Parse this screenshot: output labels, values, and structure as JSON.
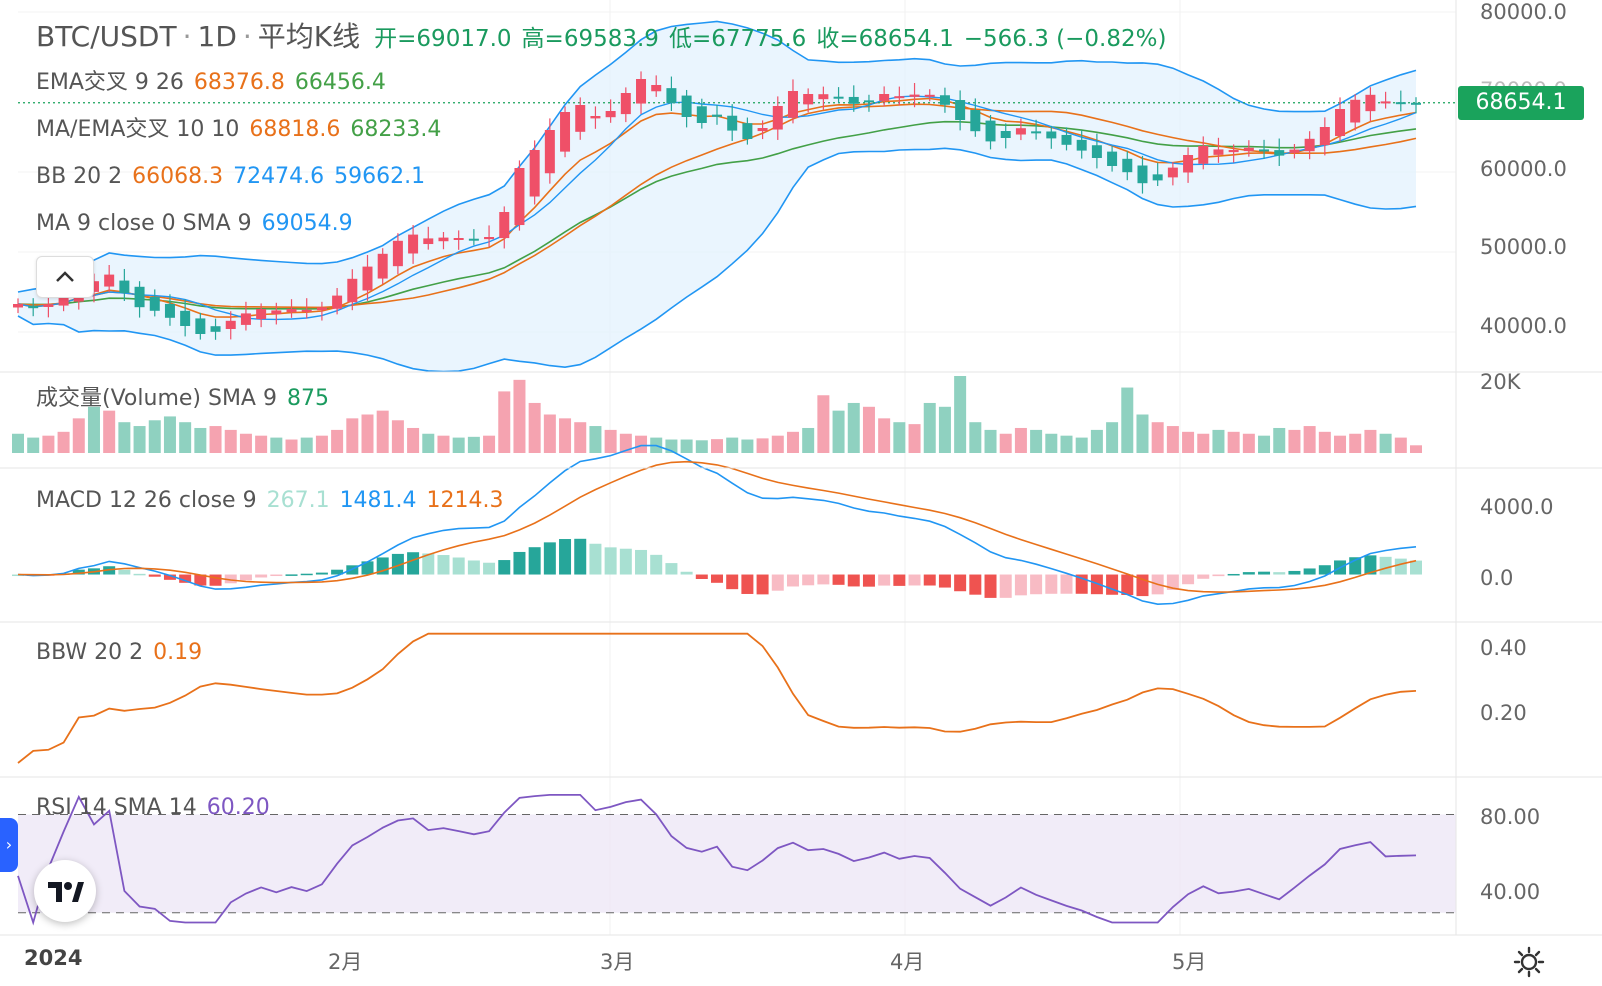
{
  "header": {
    "symbol": "BTC/USDT",
    "sep": "·",
    "interval": "1D",
    "sep2": "·",
    "chart_type": "平均K线",
    "open": "开=69017.0",
    "high": "高=69583.9",
    "low": "低=67775.6",
    "close": "收=68654.1",
    "change": "−566.3 (−0.82%)"
  },
  "indicators": {
    "ema": {
      "name": "EMA交叉 9 26",
      "v1": "68376.8",
      "v2": "66456.4"
    },
    "ma_ema": {
      "name": "MA/EMA交叉 10 10",
      "v1": "68818.6",
      "v2": "68233.4"
    },
    "bb": {
      "name": "BB 20 2",
      "v1": "66068.3",
      "v2": "72474.6",
      "v3": "59662.1"
    },
    "ma": {
      "name": "MA 9 close 0 SMA 9",
      "v1": "69054.9"
    },
    "volume": {
      "name": "成交量(Volume) SMA 9",
      "v1": "875"
    },
    "macd": {
      "name": "MACD 12 26 close 9",
      "v1": "267.1",
      "v2": "1481.4",
      "v3": "1214.3"
    },
    "bbw": {
      "name": "BBW 20 2",
      "v1": "0.19"
    },
    "rsi": {
      "name": "RSI 14 SMA 14",
      "v1": "60.20"
    }
  },
  "price_axis": {
    "t80": "80000.0",
    "t70": "70000.0",
    "t60": "60000.0",
    "t50": "50000.0",
    "t40": "40000.0"
  },
  "volume_axis": {
    "t20k": "20K"
  },
  "macd_axis": {
    "t4000": "4000.0",
    "t0": "0.0"
  },
  "bbw_axis": {
    "t040": "0.40",
    "t020": "0.20"
  },
  "rsi_axis": {
    "t80": "80.00",
    "t40": "40.00"
  },
  "time_axis": {
    "y2024": "2024",
    "feb": "2月",
    "mar": "3月",
    "apr": "4月",
    "may": "5月"
  },
  "last_price": "68654.1",
  "colors": {
    "up": "#ef5068",
    "down": "#26a69a",
    "blue": "#2196f3",
    "orange": "#e8711a",
    "green": "#43a047",
    "bb_fill": "#e3f2fd",
    "rsi_fill": "#ede7f6",
    "rsi_line": "#7e57c2"
  },
  "chart_data": {
    "type": "line",
    "title": "BTC/USDT · 1D · 平均K线",
    "x_labels": [
      "2024",
      "2月",
      "3月",
      "4月",
      "5月"
    ],
    "price_ylim": [
      35000,
      80000
    ],
    "close": [
      43500,
      42800,
      43700,
      44500,
      46800,
      46200,
      47500,
      44000,
      42800,
      42600,
      41500,
      40500,
      39500,
      40200,
      41800,
      42500,
      43000,
      42600,
      43000,
      42700,
      43200,
      45000,
      47200,
      48500,
      50200,
      51800,
      52300,
      51500,
      51900,
      51700,
      51500,
      52000,
      56000,
      62000,
      63000,
      66000,
      68000,
      68500,
      66500,
      68000,
      70500,
      72000,
      70500,
      68000,
      66500,
      66000,
      67200,
      64500,
      64000,
      66000,
      69000,
      70500,
      69500,
      69800,
      69200,
      68300,
      69000,
      70000,
      69300,
      69800,
      69600,
      68000,
      66000,
      64800,
      63500,
      64500,
      65800,
      64800,
      64000,
      63200,
      62500,
      61500,
      60500,
      59800,
      58200,
      59200,
      61000,
      62500,
      63500,
      62600,
      62800,
      63100,
      62500,
      61900,
      63100,
      64500,
      66000,
      68500,
      69200,
      69800,
      68500,
      68600,
      68654
    ],
    "ema9_last": 68376.8,
    "ema26_last": 66456.4,
    "bb_upper_last": 72474.6,
    "bb_lower_last": 59662.1,
    "volume_ylim": [
      0,
      20000
    ],
    "volume": [
      5000,
      4000,
      4500,
      5500,
      9000,
      12000,
      11000,
      8000,
      7000,
      8500,
      9500,
      8000,
      6500,
      7000,
      6000,
      5000,
      4500,
      4000,
      3500,
      4000,
      4500,
      6000,
      9000,
      10000,
      11000,
      8500,
      6500,
      5000,
      4500,
      4000,
      4200,
      4500,
      16000,
      19000,
      13000,
      10000,
      9000,
      8000,
      7000,
      6000,
      5000,
      4500,
      4000,
      3500,
      3500,
      3300,
      3600,
      4000,
      3500,
      3800,
      4500,
      5500,
      6500,
      15000,
      11000,
      13000,
      12000,
      9000,
      8000,
      7500,
      13000,
      12000,
      20000,
      8000,
      6000,
      5000,
      6500,
      6000,
      5000,
      4500,
      4000,
      6000,
      8000,
      17000,
      10000,
      8000,
      7000,
      5500,
      5000,
      6000,
      5500,
      5000,
      4500,
      6500,
      6000,
      7000,
      5500,
      4500,
      5000,
      6000,
      5000,
      4000,
      2000
    ],
    "macd_ylim": [
      -1800,
      5000
    ],
    "macd_line_last": 1481.4,
    "macd_signal_last": 1214.3,
    "macd_hist_last": 267.1,
    "bbw_ylim": [
      0.05,
      0.43
    ],
    "bbw_last": 0.19,
    "rsi_ylim": [
      35,
      90
    ],
    "rsi_bands": [
      40,
      80
    ],
    "rsi_last": 60.2
  }
}
